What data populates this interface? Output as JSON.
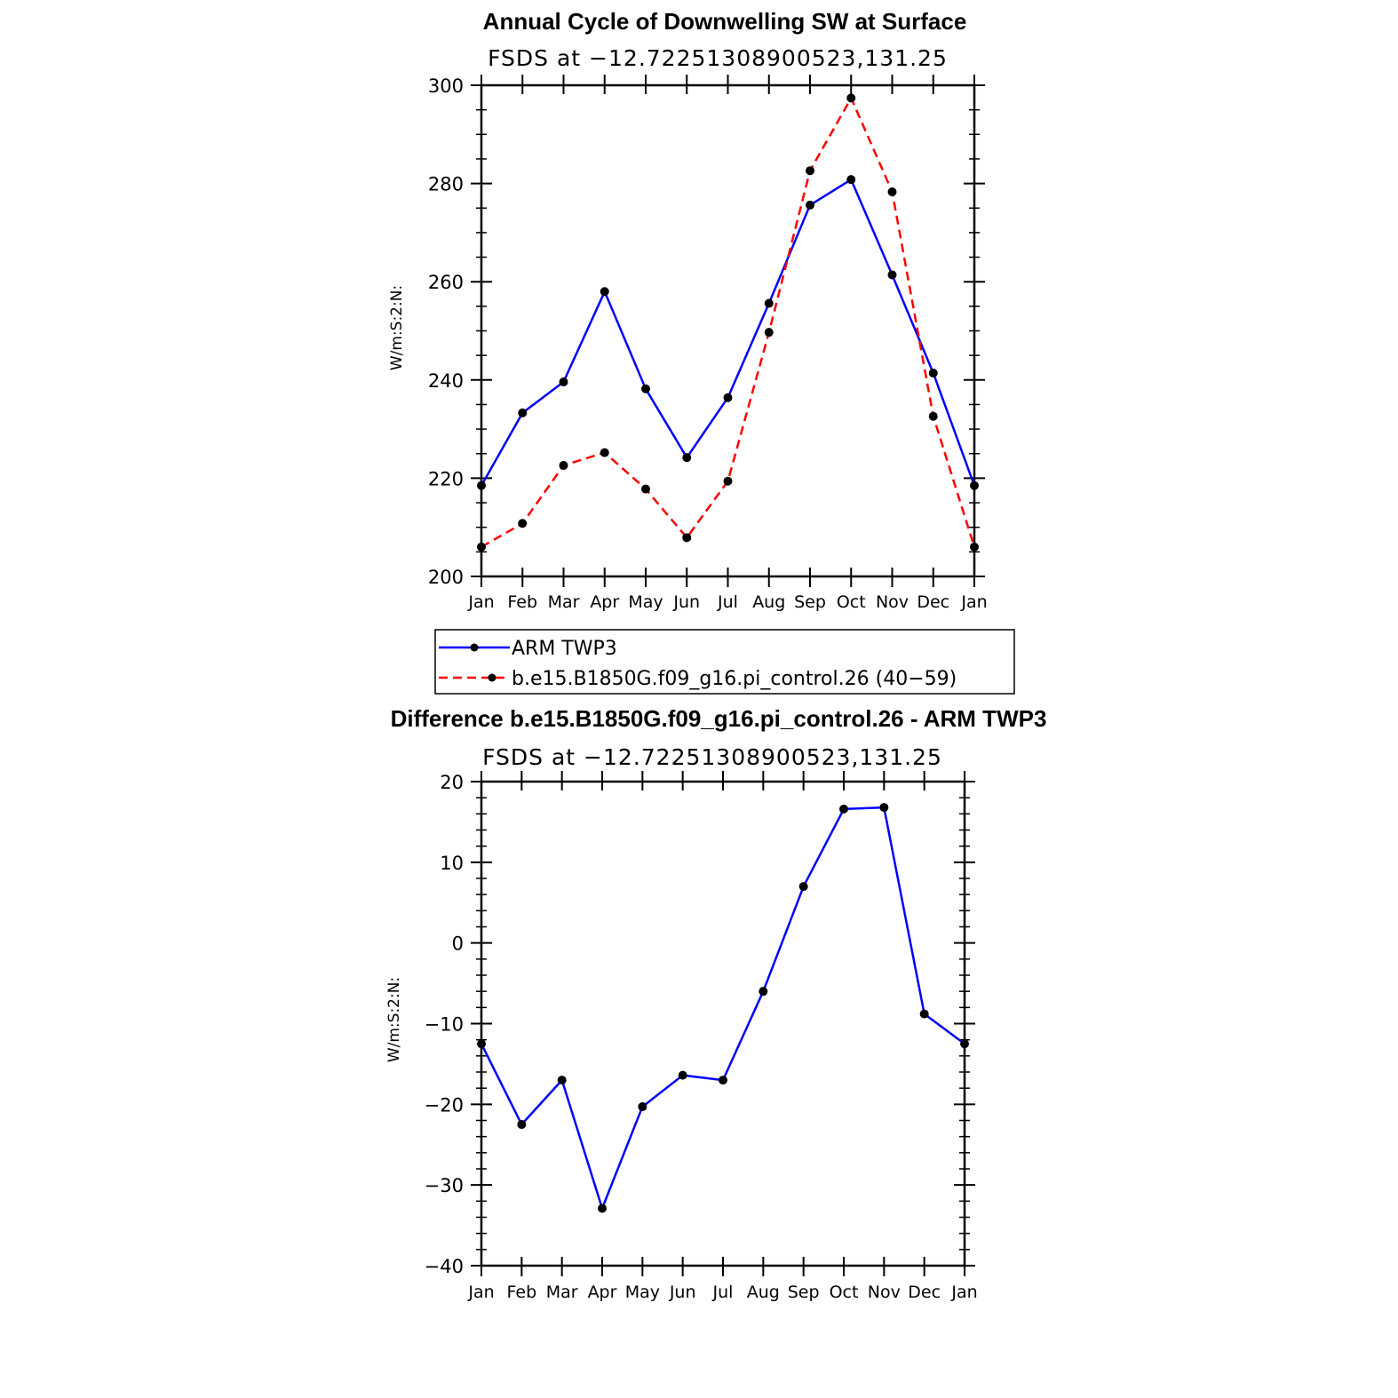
{
  "chart_data": [
    {
      "type": "line",
      "title": "Annual Cycle of Downwelling SW at Surface",
      "subtitle": "FSDS at −12.72251308900523,131.25",
      "ylabel": "W/m:S:2:N:",
      "categories": [
        "Jan",
        "Feb",
        "Mar",
        "Apr",
        "May",
        "Jun",
        "Jul",
        "Aug",
        "Sep",
        "Oct",
        "Nov",
        "Dec",
        "Jan"
      ],
      "ylim": [
        200,
        300
      ],
      "yticks": [
        "200",
        "220",
        "240",
        "260",
        "280",
        "300"
      ],
      "ytick_values": [
        200,
        220,
        240,
        260,
        280,
        300
      ],
      "series": [
        {
          "name": "ARM TWP3",
          "color": "#0000ff",
          "dash": "solid",
          "values": [
            218.5,
            233.3,
            239.6,
            258.0,
            238.2,
            224.2,
            236.4,
            255.6,
            275.6,
            280.8,
            261.4,
            241.4,
            218.5
          ]
        },
        {
          "name": "b.e15.B1850G.f09_g16.pi_control.26 (40−59)",
          "color": "#ff0000",
          "dash": "dashed",
          "values": [
            206.0,
            210.8,
            222.6,
            225.2,
            217.8,
            207.9,
            219.4,
            249.7,
            282.6,
            297.4,
            278.3,
            232.6,
            206.0
          ]
        }
      ],
      "legend": "below"
    },
    {
      "type": "line",
      "title": "Difference b.e15.B1850G.f09_g16.pi_control.26 - ARM TWP3",
      "subtitle": "FSDS at −12.72251308900523,131.25",
      "ylabel": "W/m:S:2:N:",
      "categories": [
        "Jan",
        "Feb",
        "Mar",
        "Apr",
        "May",
        "Jun",
        "Jul",
        "Aug",
        "Sep",
        "Oct",
        "Nov",
        "Dec",
        "Jan"
      ],
      "ylim": [
        -40,
        20
      ],
      "yticks": [
        "−40",
        "−30",
        "−20",
        "−10",
        "0",
        "10",
        "20"
      ],
      "ytick_values": [
        -40,
        -30,
        -20,
        -10,
        0,
        10,
        20
      ],
      "series": [
        {
          "color": "#0000ff",
          "dash": "solid",
          "values": [
            -12.5,
            -22.5,
            -17.0,
            -32.9,
            -20.3,
            -16.4,
            -17.0,
            -6.0,
            7.0,
            16.6,
            16.8,
            -8.8,
            -12.5
          ]
        }
      ]
    }
  ]
}
